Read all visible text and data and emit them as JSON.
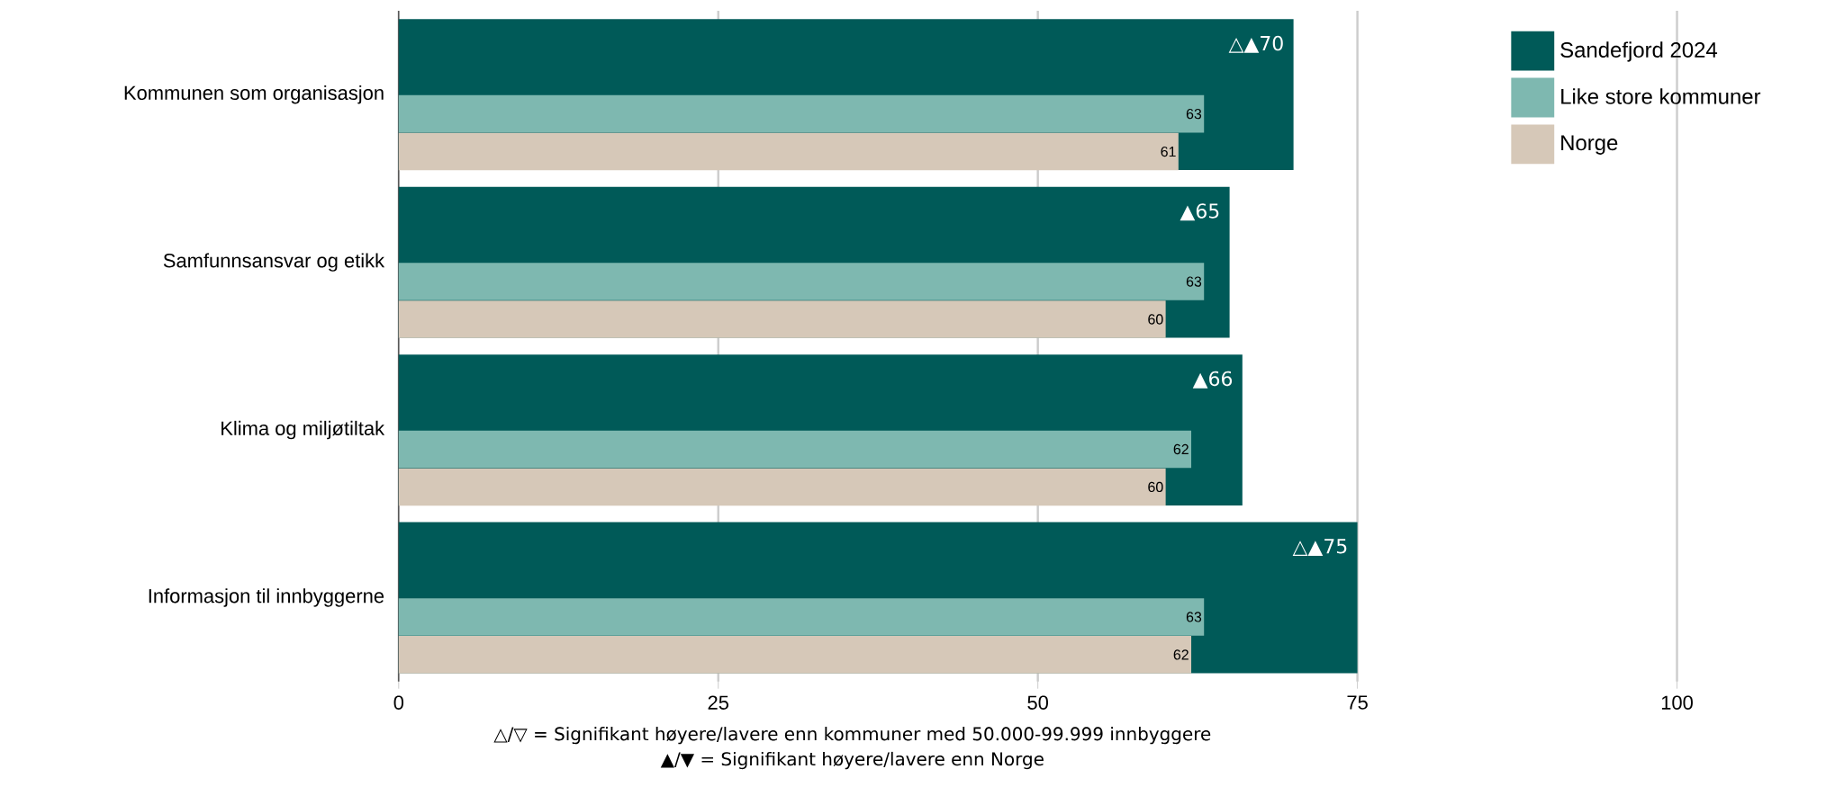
{
  "chart_data": {
    "type": "bar",
    "orientation": "horizontal",
    "categories": [
      "Kommunen som organisasjon",
      "Samfunnsansvar og etikk",
      "Klima og miljøtiltak",
      "Informasjon til innbyggerne"
    ],
    "series": [
      {
        "name": "Sandefjord 2024",
        "color": "#005a58",
        "values": [
          70,
          65,
          66,
          75
        ],
        "value_labels": [
          "△▲70",
          "▲65",
          "▲66",
          "△▲75"
        ]
      },
      {
        "name": "Like store kommuner",
        "color": "#7eb8b0",
        "values": [
          63,
          63,
          62,
          63
        ],
        "value_labels": [
          "63",
          "63",
          "62",
          "63"
        ]
      },
      {
        "name": "Norge",
        "color": "#d6c8b8",
        "values": [
          61,
          60,
          60,
          62
        ],
        "value_labels": [
          "61",
          "60",
          "60",
          "62"
        ]
      }
    ],
    "xlim": [
      0,
      100
    ],
    "xticks": [
      0,
      25,
      50,
      75,
      100
    ],
    "grid": "x",
    "legend": "top right",
    "annotations": [
      "△/▽ = Signifikant høyere/lavere enn kommuner med 50.000-99.999 innbyggere",
      "▲/▼ = Signifikant høyere/lavere enn Norge"
    ]
  }
}
